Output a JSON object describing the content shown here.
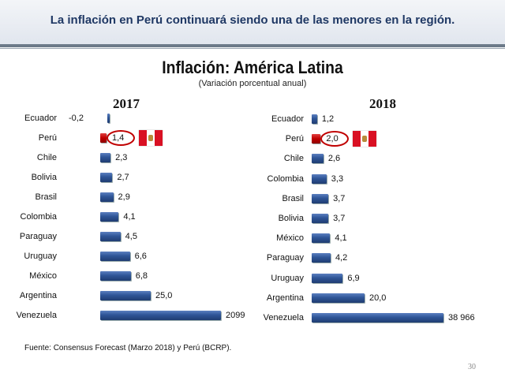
{
  "header": {
    "title": "La inflación en Perú continuará siendo una de las menores en la región."
  },
  "chart_title": "Inflación: América Latina",
  "chart_subtitle": "(Variación porcentual anual)",
  "highlight_colors": {
    "bar": "#2f5597",
    "peru_bar": "#c00000",
    "flag_red": "#d91023"
  },
  "chart_data": [
    {
      "type": "bar",
      "orientation": "horizontal",
      "title": "2017",
      "categories": [
        "Ecuador",
        "Perú",
        "Chile",
        "Bolivia",
        "Brasil",
        "Colombia",
        "Paraguay",
        "Uruguay",
        "México",
        "Argentina",
        "Venezuela"
      ],
      "values": [
        -0.2,
        1.4,
        2.3,
        2.7,
        2.9,
        4.1,
        4.5,
        6.6,
        6.8,
        25.0,
        2099
      ],
      "labels": [
        "-0,2",
        "1,4",
        "2,3",
        "2,7",
        "2,9",
        "4,1",
        "4,5",
        "6,6",
        "6,8",
        "25,0",
        "2099"
      ],
      "highlight": "Perú"
    },
    {
      "type": "bar",
      "orientation": "horizontal",
      "title": "2018",
      "categories": [
        "Ecuador",
        "Perú",
        "Chile",
        "Colombia",
        "Brasil",
        "Bolivia",
        "México",
        "Paraguay",
        "Uruguay",
        "Argentina",
        "Venezuela"
      ],
      "values": [
        1.2,
        2.0,
        2.6,
        3.3,
        3.7,
        3.7,
        4.1,
        4.2,
        6.9,
        20.0,
        38966
      ],
      "labels": [
        "1,2",
        "2,0",
        "2,6",
        "3,3",
        "3,7",
        "3,7",
        "4,1",
        "4,2",
        "6,9",
        "20,0",
        "38 966"
      ],
      "highlight": "Perú"
    }
  ],
  "source": "Fuente: Consensus Forecast (Marzo 2018) y Perú (BCRP).",
  "page_number": "30"
}
